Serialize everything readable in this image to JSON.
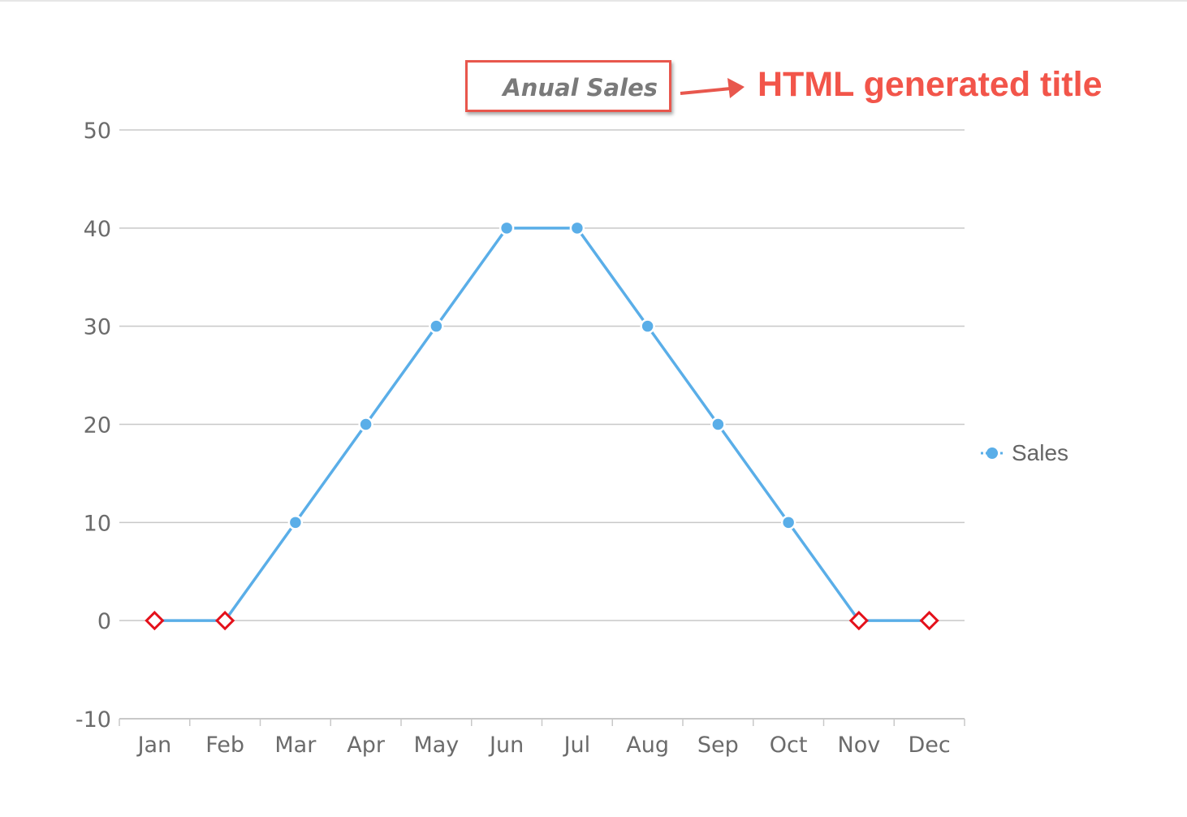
{
  "chart_data": {
    "type": "line",
    "title": "Anual Sales",
    "categories": [
      "Jan",
      "Feb",
      "Mar",
      "Apr",
      "May",
      "Jun",
      "Jul",
      "Aug",
      "Sep",
      "Oct",
      "Nov",
      "Dec"
    ],
    "series": [
      {
        "name": "Sales",
        "values": [
          0,
          0,
          10,
          20,
          30,
          40,
          40,
          30,
          20,
          10,
          0,
          0
        ],
        "color": "#5aaee8"
      }
    ],
    "highlight_marker_color": "#e4111b",
    "highlighted_categories": [
      "Jan",
      "Feb",
      "Nov",
      "Dec"
    ],
    "ylim": [
      -10,
      50
    ],
    "yticks": [
      -10,
      0,
      10,
      20,
      30,
      40,
      50
    ],
    "grid": true,
    "legend": "right"
  },
  "annotation": {
    "text": "HTML generated title",
    "color": "#f2554a"
  }
}
